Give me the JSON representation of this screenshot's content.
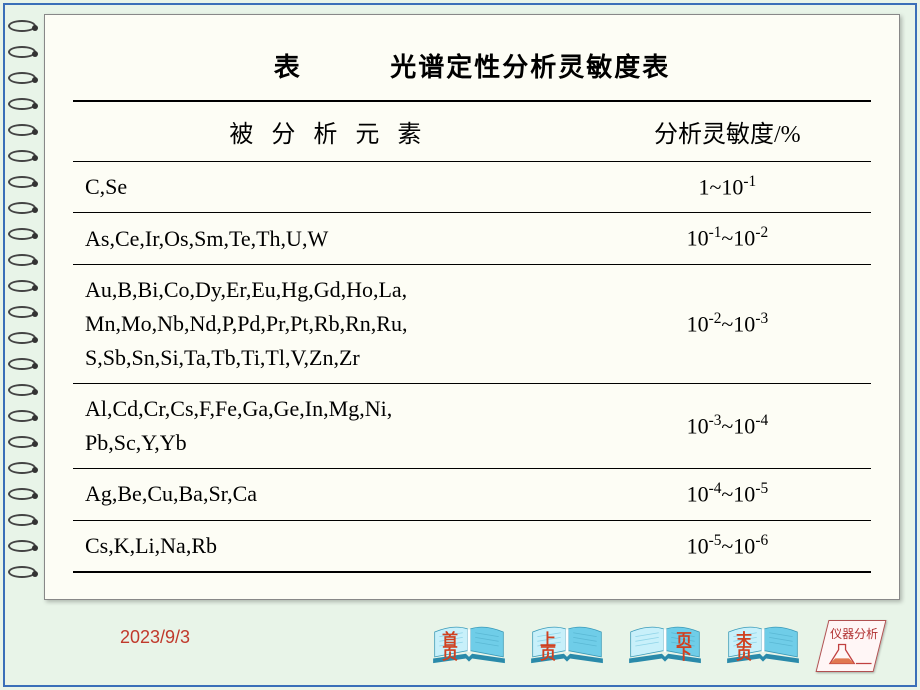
{
  "slide": {
    "background_color": "#e8f4e8",
    "border_color": "#3a6fb8",
    "page_color": "#fdfdf5"
  },
  "table": {
    "title_label": "表",
    "title_text": "光谱定性分析灵敏度表",
    "title_fontsize": 26,
    "header_fontsize": 24,
    "cell_fontsize": 22,
    "columns": [
      "被 分 析 元 素",
      "分析灵敏度/%"
    ],
    "rows": [
      {
        "elements": "C,Se",
        "range": "1~10<sup>-1</sup>"
      },
      {
        "elements": "As,Ce,Ir,Os,Sm,Te,Th,U,W",
        "range": "10<sup>-1</sup>~10<sup>-2</sup>"
      },
      {
        "elements": "Au,B,Bi,Co,Dy,Er,Eu,Hg,Gd,Ho,La,\nMn,Mo,Nb,Nd,P,Pd,Pr,Pt,Rb,Rn,Ru,\nS,Sb,Sn,Si,Ta,Tb,Ti,Tl,V,Zn,Zr",
        "range": "10<sup>-2</sup>~10<sup>-3</sup>"
      },
      {
        "elements": "Al,Cd,Cr,Cs,F,Fe,Ga,Ge,In,Mg,Ni,\nPb,Sc,Y,Yb",
        "range": "10<sup>-3</sup>~10<sup>-4</sup>"
      },
      {
        "elements": "Ag,Be,Cu,Ba,Sr,Ca",
        "range": "10<sup>-4</sup>~10<sup>-5</sup>"
      },
      {
        "elements": "Cs,K,Li,Na,Rb",
        "range": "10<sup>-5</sup>~10<sup>-6</sup>"
      }
    ]
  },
  "footer": {
    "date": "2023/9/3",
    "date_color": "#c0392b",
    "nav_buttons": [
      {
        "name": "first-page-button",
        "label1": "首",
        "label2": "页",
        "side": "left"
      },
      {
        "name": "prev-page-button",
        "label1": "上",
        "label2": "页",
        "side": "left"
      },
      {
        "name": "next-page-button",
        "label1": "页",
        "label2": "下",
        "side": "right"
      },
      {
        "name": "last-page-button",
        "label1": "末",
        "label2": "页",
        "side": "left"
      }
    ],
    "instrument_label": "仪器分析",
    "book_colors": {
      "page_light": "#c8f0fa",
      "page_dark": "#6fcde8",
      "shadow": "#2a8aaa"
    }
  }
}
